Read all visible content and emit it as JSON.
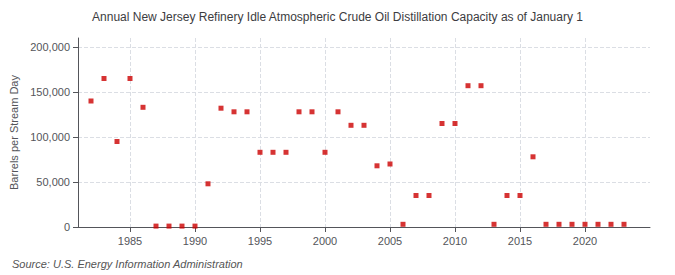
{
  "chart_data": {
    "type": "scatter",
    "title": "Annual New Jersey Refinery Idle Atmospheric Crude Oil Distillation Capacity as of January 1",
    "ylabel": "Barrels per Stream Day",
    "annotations": [
      "Source: U.S. Energy Information Administration"
    ],
    "color": "#cc0000",
    "marker": "square",
    "grid": true,
    "xlim": [
      1981,
      2025
    ],
    "ylim": [
      0,
      210000
    ],
    "xticks": [
      1985,
      1990,
      1995,
      2000,
      2005,
      2010,
      2015,
      2020
    ],
    "yticks": [
      0,
      {
        "value": 50000,
        "label": "50,000"
      },
      {
        "value": 100000,
        "label": "100,000"
      },
      {
        "value": 150000,
        "label": "150,000"
      },
      {
        "value": 200000,
        "label": "200,000"
      }
    ],
    "x": [
      1982,
      1983,
      1984,
      1985,
      1986,
      1987,
      1988,
      1989,
      1990,
      1991,
      1992,
      1993,
      1994,
      1995,
      1996,
      1997,
      1998,
      1999,
      2000,
      2001,
      2002,
      2003,
      2004,
      2005,
      2006,
      2007,
      2008,
      2009,
      2010,
      2011,
      2012,
      2013,
      2014,
      2015,
      2016,
      2017,
      2018,
      2019,
      2020,
      2021,
      2022,
      2023
    ],
    "values": [
      140000,
      165000,
      95000,
      165000,
      133000,
      1000,
      1000,
      1000,
      1000,
      48000,
      132000,
      128000,
      128000,
      83000,
      83000,
      83000,
      128000,
      128000,
      83000,
      128000,
      113000,
      113000,
      68000,
      70000,
      3000,
      35000,
      35000,
      115000,
      115000,
      157000,
      157000,
      3000,
      35000,
      35000,
      78000,
      3000,
      3000,
      3000,
      3000,
      3000,
      3000,
      3000
    ]
  }
}
